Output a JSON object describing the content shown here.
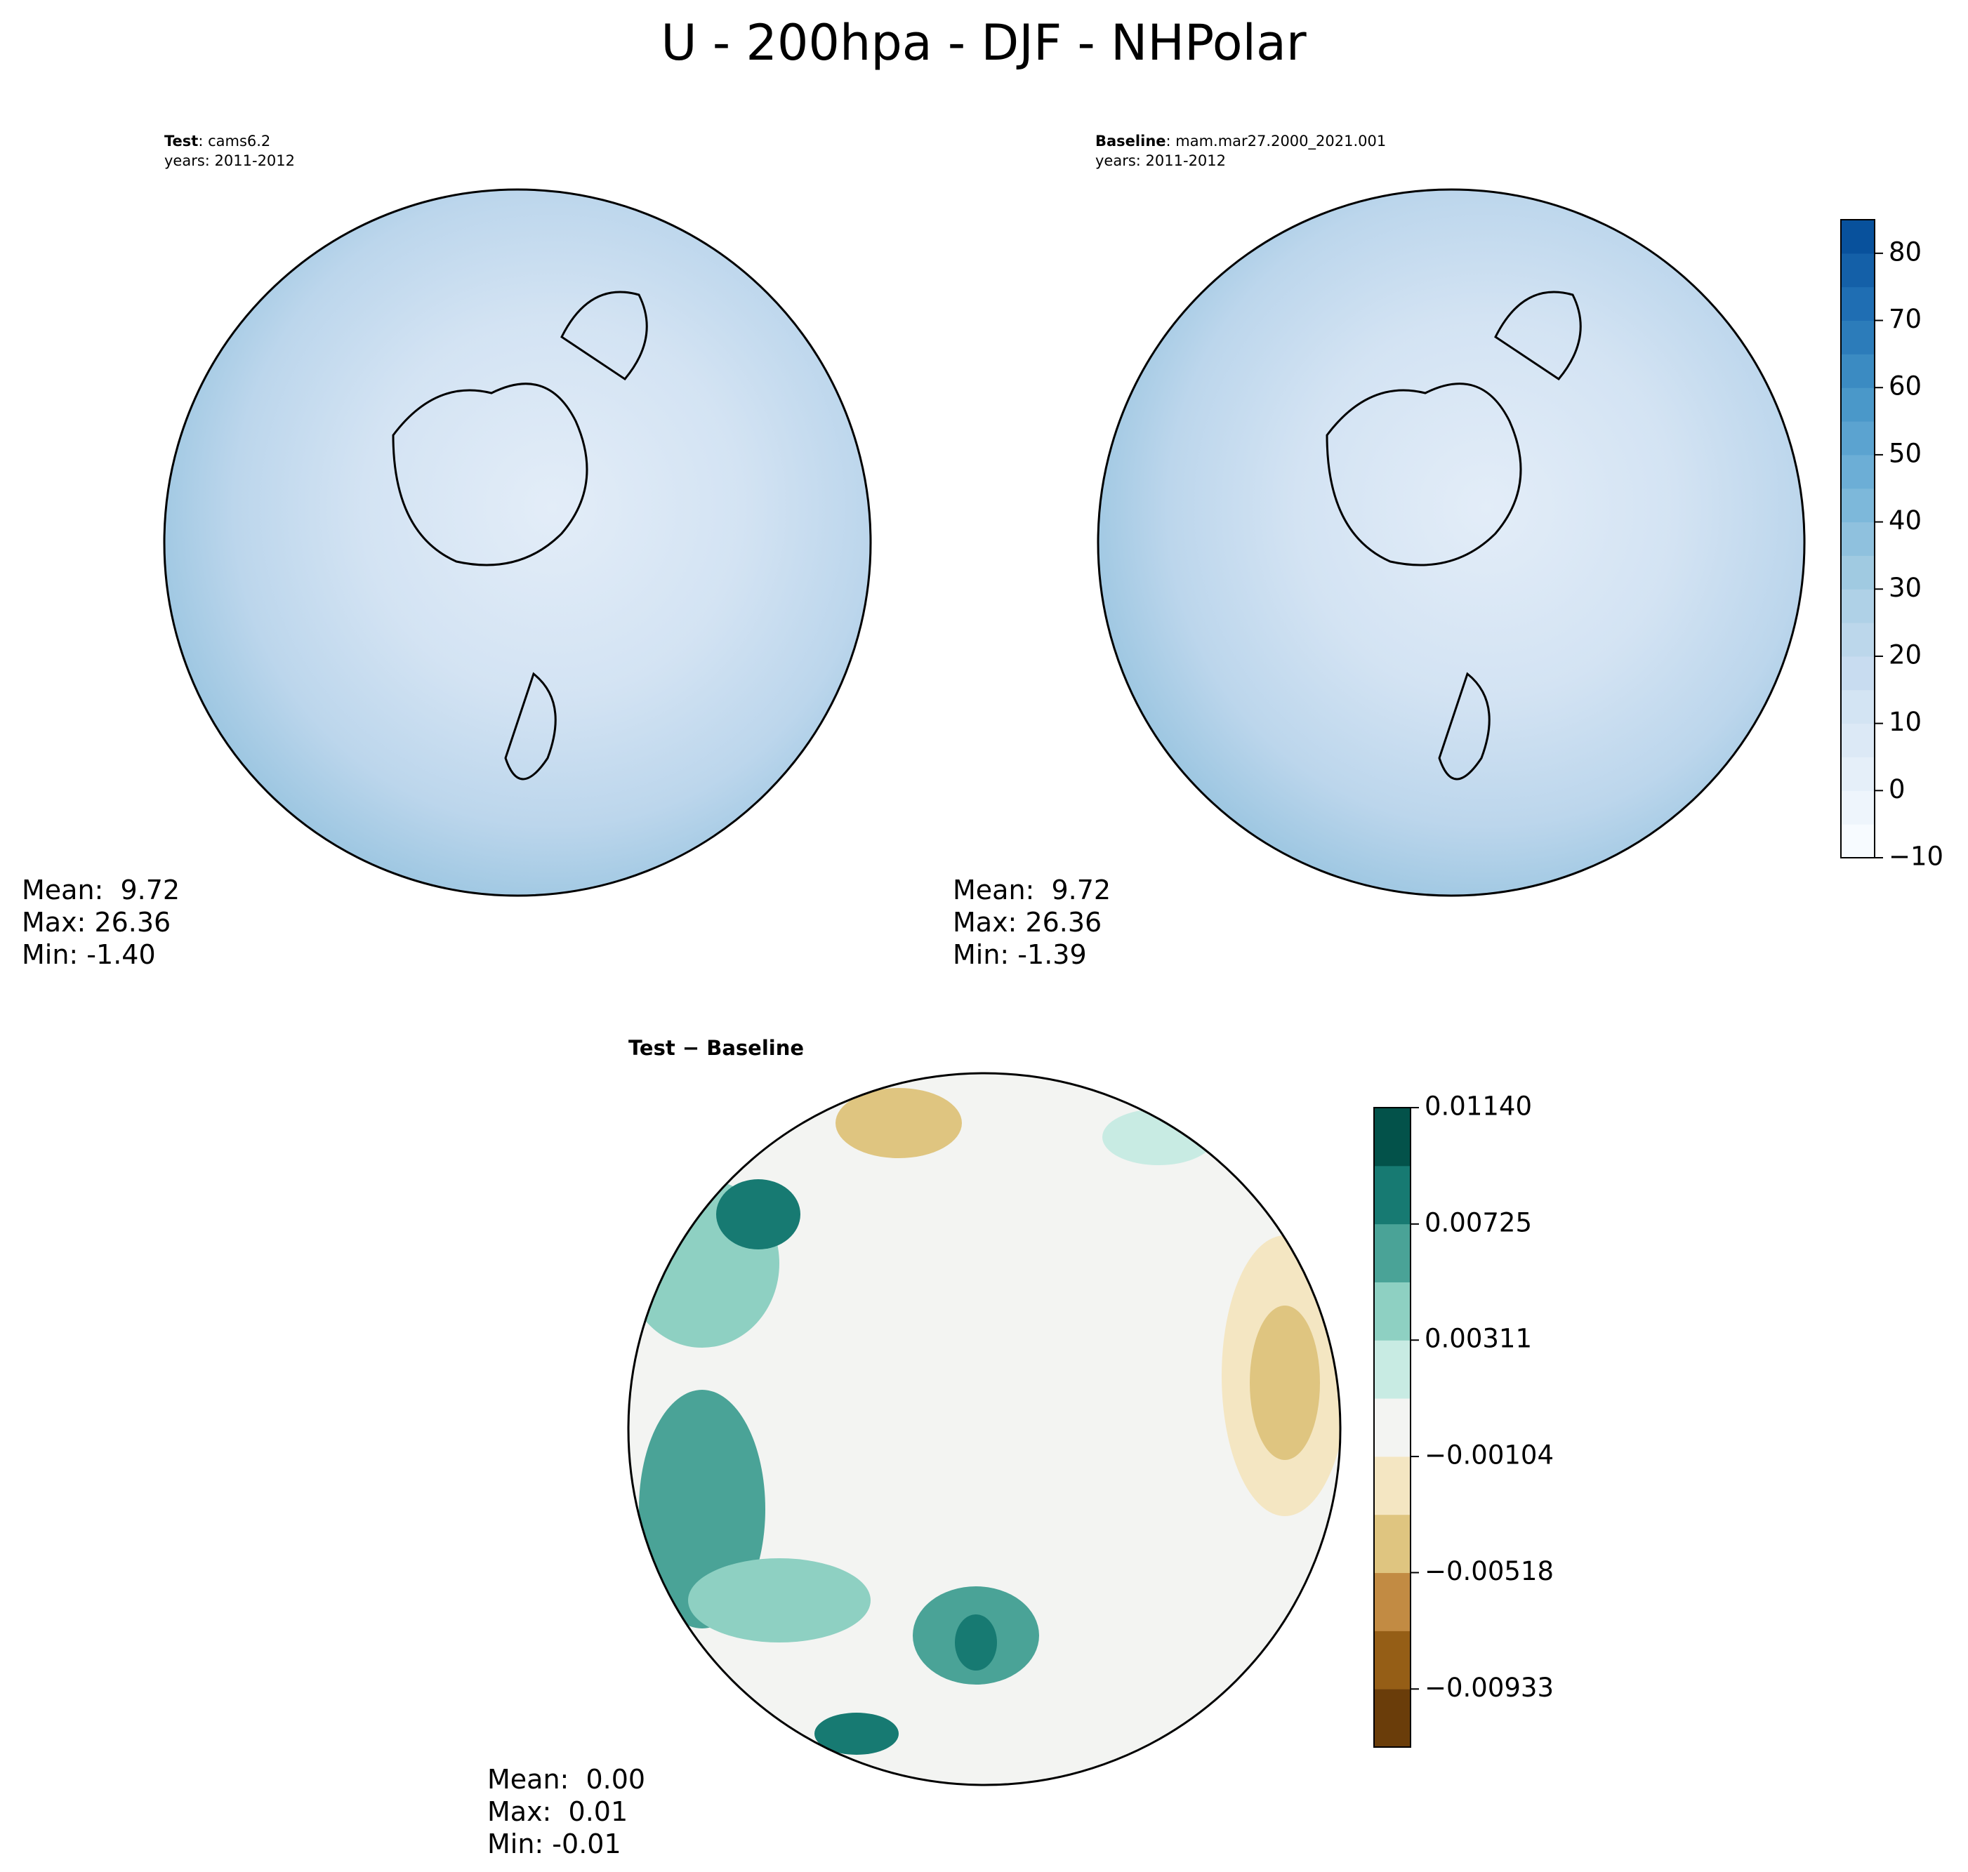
{
  "header": {
    "title": "U - 200hpa - DJF - NHPolar"
  },
  "panels": [
    {
      "label_bold": "Test",
      "label_rest": ": cams6.2",
      "years": "years: 2011-2012",
      "stats": [
        "Mean:  9.72",
        "Max: 26.36",
        "Min: -1.40"
      ]
    },
    {
      "label_bold": "Baseline",
      "label_rest": ": mam.mar27.2000_2021.001",
      "years": "years: 2011-2012",
      "stats": [
        "Mean:  9.72",
        "Max: 26.36",
        "Min: -1.39"
      ]
    },
    {
      "label": "Test − Baseline",
      "stats": [
        "Mean:  0.00",
        "Max:  0.01",
        "Min: -0.01"
      ]
    }
  ],
  "colorbars": [
    {
      "lim": [
        -10,
        85
      ],
      "ticks": [
        {
          "value": -10,
          "label": "−10"
        },
        0,
        10,
        20,
        30,
        40,
        50,
        60,
        70,
        80
      ],
      "colors": [
        "#f7fbff",
        "#eef5fc",
        "#e5eff9",
        "#dce9f6",
        "#d3e4f3",
        "#c8dcf0",
        "#bcd7eb",
        "#afd1e7",
        "#a0cae1",
        "#8fc1de",
        "#7db8da",
        "#6caed6",
        "#5ba3d0",
        "#4a98c9",
        "#3b8bc2",
        "#2c7cba",
        "#1f6eb3",
        "#1460a8",
        "#08519c"
      ]
    },
    {
      "lim": [
        -0.0114,
        0.0114
      ],
      "ticks": [
        {
          "value": 0.0114,
          "label": "0.01140"
        },
        0.00725,
        0.00311,
        {
          "value": -0.00104,
          "label": "−0.00104"
        },
        {
          "value": -0.00518,
          "label": "−0.00518"
        },
        {
          "value": -0.00933,
          "label": "−0.00933"
        }
      ],
      "colors": [
        "#6a3d0a",
        "#955e16",
        "#c28b43",
        "#dfc580",
        "#f4e6c2",
        "#f3f4f2",
        "#c8ebe3",
        "#8ed0c2",
        "#4aa397",
        "#177a72",
        "#03524a"
      ]
    }
  ]
}
